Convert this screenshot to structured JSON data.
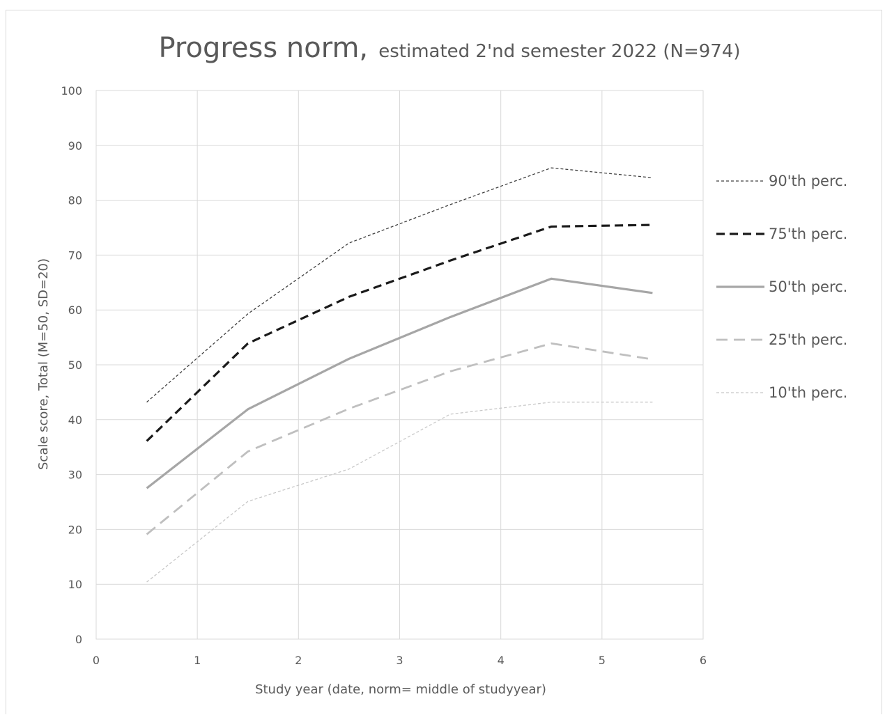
{
  "chart_data": {
    "type": "line",
    "title": "Progress norm,",
    "subtitle": "estimated 2'nd semester 2022 (N=974)",
    "xlabel": "Study year (date, norm= middle of studyyear)",
    "ylabel": "Scale score, Total (M=50, SD=20)",
    "xlim": [
      0,
      6
    ],
    "ylim": [
      0,
      100
    ],
    "xticks": [
      0,
      1,
      2,
      3,
      4,
      5,
      6
    ],
    "yticks": [
      0,
      10,
      20,
      30,
      40,
      50,
      60,
      70,
      80,
      90,
      100
    ],
    "grid": true,
    "legend_position": "right",
    "x": [
      0.5,
      1.5,
      2.5,
      3.5,
      4.5,
      5.5
    ],
    "series": [
      {
        "name": "90'th perc.",
        "values": [
          43.2,
          59.3,
          72.2,
          79.2,
          85.9,
          84.1
        ],
        "color": "#404040",
        "style": "dotted"
      },
      {
        "name": "75'th perc.",
        "values": [
          36.1,
          53.9,
          62.4,
          69.0,
          75.2,
          75.5
        ],
        "color": "#1a1a1a",
        "style": "dashed-bold"
      },
      {
        "name": "50'th perc.",
        "values": [
          27.5,
          41.9,
          51.1,
          58.7,
          65.7,
          63.1
        ],
        "color": "#a6a6a6",
        "style": "solid"
      },
      {
        "name": "25'th perc.",
        "values": [
          19.1,
          34.2,
          42.0,
          48.8,
          53.9,
          51.0
        ],
        "color": "#bfbfbf",
        "style": "dashed"
      },
      {
        "name": "10'th perc.",
        "values": [
          10.4,
          25.1,
          31.0,
          41.0,
          43.2,
          43.2
        ],
        "color": "#c8c8c8",
        "style": "dotted-light"
      }
    ]
  }
}
